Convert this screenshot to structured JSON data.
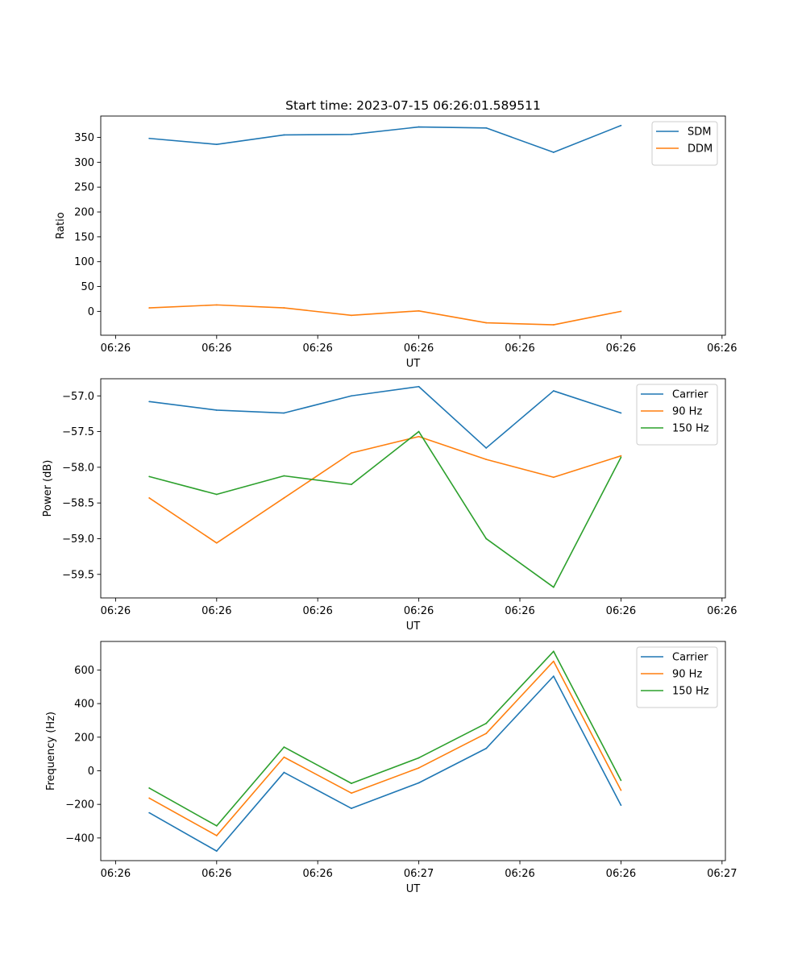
{
  "title": "Start time: 2023-07-15 06:26:01.589511",
  "colors": {
    "blue": "#1f77b4",
    "orange": "#ff7f0e",
    "green": "#2ca02c"
  },
  "chart_data": [
    {
      "type": "line",
      "title": "Start time: 2023-07-15 06:26:01.589511",
      "xlabel": "UT",
      "ylabel": "Ratio",
      "x_index": [
        0,
        1,
        2,
        3,
        4,
        5,
        6,
        7
      ],
      "xlim": [
        -0.72,
        8.55
      ],
      "xticks": [
        -0.5,
        1.0,
        2.5,
        4.0,
        5.5,
        7.0,
        8.5
      ],
      "xtick_labels": [
        "06:26",
        "06:26",
        "06:26",
        "06:26",
        "06:26",
        "06:26",
        "06:26"
      ],
      "ylim": [
        -48,
        393
      ],
      "yticks": [
        0,
        50,
        100,
        150,
        200,
        250,
        300,
        350
      ],
      "ytick_labels": [
        "0",
        "50",
        "100",
        "150",
        "200",
        "250",
        "300",
        "350"
      ],
      "legend": "top-right",
      "series": [
        {
          "name": "SDM",
          "color": "#1f77b4",
          "values": [
            348,
            336,
            355,
            356,
            371,
            369,
            320,
            374
          ]
        },
        {
          "name": "DDM",
          "color": "#ff7f0e",
          "values": [
            7,
            13,
            7,
            -8,
            1,
            -23,
            -27,
            0
          ]
        }
      ]
    },
    {
      "type": "line",
      "title": "",
      "xlabel": "UT",
      "ylabel": "Power (dB)",
      "x_index": [
        0,
        1,
        2,
        3,
        4,
        5,
        6,
        7
      ],
      "xlim": [
        -0.72,
        8.55
      ],
      "xticks": [
        -0.5,
        1.0,
        2.5,
        4.0,
        5.5,
        7.0,
        8.5
      ],
      "xtick_labels": [
        "06:26",
        "06:26",
        "06:26",
        "06:26",
        "06:26",
        "06:26",
        "06:26"
      ],
      "ylim": [
        -59.83,
        -56.76
      ],
      "yticks": [
        -57.0,
        -57.5,
        -58.0,
        -58.5,
        -59.0,
        -59.5
      ],
      "ytick_labels": [
        "−57.0",
        "−57.5",
        "−58.0",
        "−58.5",
        "−59.0",
        "−59.5"
      ],
      "legend": "top-right",
      "series": [
        {
          "name": "Carrier",
          "color": "#1f77b4",
          "values": [
            -57.08,
            -57.2,
            -57.24,
            -57.0,
            -56.87,
            -57.73,
            -56.93,
            -57.24
          ]
        },
        {
          "name": "90 Hz",
          "color": "#ff7f0e",
          "values": [
            -58.43,
            -59.06,
            -58.43,
            -57.8,
            -57.57,
            -57.89,
            -58.14,
            -57.84
          ]
        },
        {
          "name": "150 Hz",
          "color": "#2ca02c",
          "values": [
            -58.13,
            -58.38,
            -58.12,
            -58.24,
            -57.5,
            -59.0,
            -59.68,
            -57.86
          ]
        }
      ]
    },
    {
      "type": "line",
      "title": "",
      "xlabel": "UT",
      "ylabel": "Frequency (Hz)",
      "x_index": [
        0,
        1,
        2,
        3,
        4,
        5,
        6,
        7
      ],
      "xlim": [
        -0.72,
        8.55
      ],
      "xticks": [
        -0.5,
        1.0,
        2.5,
        4.0,
        5.5,
        7.0,
        8.5
      ],
      "xtick_labels": [
        "06:26",
        "06:26",
        "06:26",
        "06:27",
        "06:26",
        "06:26",
        "06:27"
      ],
      "ylim": [
        -535,
        770
      ],
      "yticks": [
        -400,
        -200,
        0,
        200,
        400,
        600
      ],
      "ytick_labels": [
        "−400",
        "−200",
        "0",
        "200",
        "400",
        "600"
      ],
      "legend": "top-right",
      "series": [
        {
          "name": "Carrier",
          "color": "#1f77b4",
          "values": [
            -250,
            -478,
            -10,
            -224,
            -72,
            133,
            563,
            -205
          ]
        },
        {
          "name": "90 Hz",
          "color": "#ff7f0e",
          "values": [
            -163,
            -386,
            81,
            -133,
            17,
            222,
            652,
            -116
          ]
        },
        {
          "name": "150 Hz",
          "color": "#2ca02c",
          "values": [
            -103,
            -328,
            141,
            -75,
            77,
            282,
            711,
            -57
          ]
        }
      ]
    }
  ]
}
